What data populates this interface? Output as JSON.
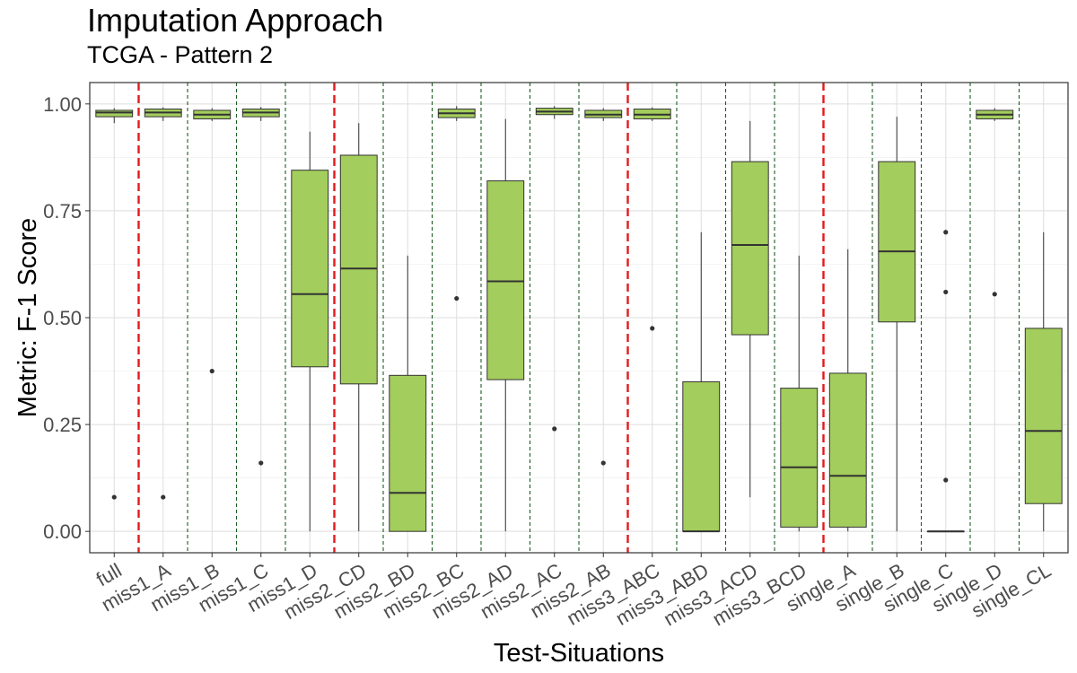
{
  "chart_data": {
    "type": "boxplot",
    "title": "Imputation Approach",
    "subtitle": "TCGA - Pattern 2",
    "xlabel": "Test-Situations",
    "ylabel": "Metric: F-1 Score",
    "ylim": [
      -0.05,
      1.05
    ],
    "yticks": [
      0.0,
      0.25,
      0.5,
      0.75,
      1.0
    ],
    "ytick_labels": [
      "0.00",
      "0.25",
      "0.50",
      "0.75",
      "1.00"
    ],
    "grid": true,
    "box_fill": "#a3cd5c",
    "categories": [
      "full",
      "miss1_A",
      "miss1_B",
      "miss1_C",
      "miss1_D",
      "miss2_CD",
      "miss2_BD",
      "miss2_BC",
      "miss2_AD",
      "miss2_AC",
      "miss2_AB",
      "miss3_ABC",
      "miss3_ABD",
      "miss3_ACD",
      "miss3_BCD",
      "single_A",
      "single_B",
      "single_C",
      "single_D",
      "single_CL"
    ],
    "boxes": [
      {
        "lower_whisker": 0.955,
        "q1": 0.97,
        "median": 0.98,
        "q3": 0.985,
        "upper_whisker": 0.99,
        "outliers": [
          0.08
        ]
      },
      {
        "lower_whisker": 0.96,
        "q1": 0.97,
        "median": 0.98,
        "q3": 0.988,
        "upper_whisker": 0.992,
        "outliers": [
          0.08
        ]
      },
      {
        "lower_whisker": 0.96,
        "q1": 0.965,
        "median": 0.975,
        "q3": 0.985,
        "upper_whisker": 0.99,
        "outliers": [
          0.375
        ]
      },
      {
        "lower_whisker": 0.96,
        "q1": 0.97,
        "median": 0.98,
        "q3": 0.988,
        "upper_whisker": 0.993,
        "outliers": [
          0.16
        ]
      },
      {
        "lower_whisker": 0.0,
        "q1": 0.385,
        "median": 0.555,
        "q3": 0.845,
        "upper_whisker": 0.935,
        "outliers": []
      },
      {
        "lower_whisker": 0.0,
        "q1": 0.345,
        "median": 0.615,
        "q3": 0.88,
        "upper_whisker": 0.955,
        "outliers": []
      },
      {
        "lower_whisker": 0.0,
        "q1": 0.0,
        "median": 0.09,
        "q3": 0.365,
        "upper_whisker": 0.645,
        "outliers": []
      },
      {
        "lower_whisker": 0.96,
        "q1": 0.968,
        "median": 0.978,
        "q3": 0.988,
        "upper_whisker": 0.995,
        "outliers": [
          0.545
        ]
      },
      {
        "lower_whisker": 0.0,
        "q1": 0.355,
        "median": 0.585,
        "q3": 0.82,
        "upper_whisker": 0.965,
        "outliers": []
      },
      {
        "lower_whisker": 0.965,
        "q1": 0.975,
        "median": 0.982,
        "q3": 0.99,
        "upper_whisker": 0.995,
        "outliers": [
          0.24
        ]
      },
      {
        "lower_whisker": 0.96,
        "q1": 0.968,
        "median": 0.975,
        "q3": 0.985,
        "upper_whisker": 0.99,
        "outliers": [
          0.16
        ]
      },
      {
        "lower_whisker": 0.96,
        "q1": 0.965,
        "median": 0.975,
        "q3": 0.988,
        "upper_whisker": 0.992,
        "outliers": [
          0.475
        ]
      },
      {
        "lower_whisker": 0.0,
        "q1": 0.0,
        "median": 0.0,
        "q3": 0.35,
        "upper_whisker": 0.7,
        "outliers": []
      },
      {
        "lower_whisker": 0.08,
        "q1": 0.46,
        "median": 0.67,
        "q3": 0.865,
        "upper_whisker": 0.96,
        "outliers": []
      },
      {
        "lower_whisker": 0.0,
        "q1": 0.01,
        "median": 0.15,
        "q3": 0.335,
        "upper_whisker": 0.645,
        "outliers": []
      },
      {
        "lower_whisker": 0.0,
        "q1": 0.01,
        "median": 0.13,
        "q3": 0.37,
        "upper_whisker": 0.66,
        "outliers": []
      },
      {
        "lower_whisker": 0.0,
        "q1": 0.49,
        "median": 0.655,
        "q3": 0.865,
        "upper_whisker": 0.97,
        "outliers": []
      },
      {
        "lower_whisker": 0.0,
        "q1": 0.0,
        "median": 0.0,
        "q3": 0.0,
        "upper_whisker": 0.0,
        "outliers": [
          0.12,
          0.56,
          0.7
        ]
      },
      {
        "lower_whisker": 0.96,
        "q1": 0.965,
        "median": 0.975,
        "q3": 0.985,
        "upper_whisker": 0.99,
        "outliers": [
          0.555
        ]
      },
      {
        "lower_whisker": 0.0,
        "q1": 0.065,
        "median": 0.235,
        "q3": 0.475,
        "upper_whisker": 0.7,
        "outliers": []
      }
    ],
    "separators": {
      "red_dashed_between": [
        [
          0,
          1
        ],
        [
          4,
          5
        ],
        [
          10,
          11
        ],
        [
          14,
          15
        ]
      ],
      "green_dashed_between": [
        [
          1,
          2
        ],
        [
          2,
          3
        ],
        [
          3,
          4
        ],
        [
          5,
          6
        ],
        [
          6,
          7
        ],
        [
          7,
          8
        ],
        [
          8,
          9
        ],
        [
          9,
          10
        ],
        [
          11,
          12
        ],
        [
          12,
          13
        ],
        [
          13,
          14
        ],
        [
          15,
          16
        ],
        [
          16,
          17
        ],
        [
          17,
          18
        ],
        [
          18,
          19
        ]
      ],
      "red_color": "#e31a1c",
      "green_color": "#1b5e20"
    }
  }
}
